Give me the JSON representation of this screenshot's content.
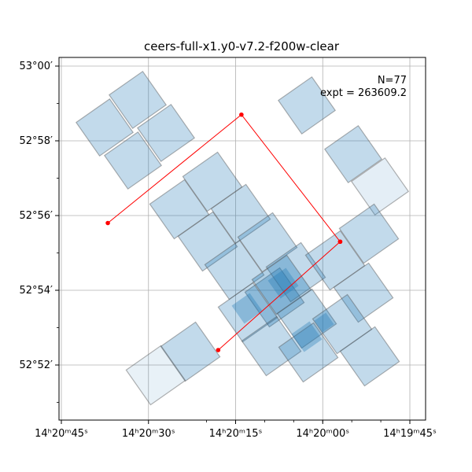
{
  "chart_data": {
    "type": "scatter",
    "title": "ceers-full-x1.y0-v7.2-f200w-clear",
    "xlabel": "",
    "ylabel": "",
    "x_axis": "RA (hms), decreasing to the right",
    "y_axis": "Dec (degrees, arcmin)",
    "xlim": [
      "14h20m49s",
      "14h19m43s"
    ],
    "ylim": [
      "52°50.5′",
      "53°00.3′"
    ],
    "x_ticks": [
      {
        "value": "14h20m45s",
        "label": "14ʰ20ᵐ45ˢ"
      },
      {
        "value": "14h20m30s",
        "label": "14ʰ20ᵐ30ˢ"
      },
      {
        "value": "14h20m15s",
        "label": "14ʰ20ᵐ15ˢ"
      },
      {
        "value": "14h20m00s",
        "label": "14ʰ20ᵐ00ˢ"
      },
      {
        "value": "14h19m45s",
        "label": "14ʰ19ᵐ45ˢ"
      }
    ],
    "y_ticks": [
      {
        "value": "53°00′",
        "label": "53°00′"
      },
      {
        "value": "52°58′",
        "label": "52°58′"
      },
      {
        "value": "52°56′",
        "label": "52°56′"
      },
      {
        "value": "52°54′",
        "label": "52°54′"
      },
      {
        "value": "52°52′",
        "label": "52°52′"
      }
    ],
    "grid": true,
    "annotation": {
      "n_label": "N=77",
      "expt_label": "expt = 263609.2"
    },
    "footprint_color": "#1f77b4",
    "footprint_edge_color": "#555555",
    "red_line_color": "#ff0000",
    "exposure_groups": [
      {
        "ra_center": "14h20m33s",
        "dec_center": "52°58.0′",
        "depth": "medium"
      },
      {
        "ra_center": "14h20m17s",
        "dec_center": "52°55.5′",
        "depth": "medium"
      },
      {
        "ra_center": "14h20m05s",
        "dec_center": "52°53.3′",
        "depth": "deep"
      },
      {
        "ra_center": "14h19m55s",
        "dec_center": "52°57.0′",
        "depth": "shallow"
      },
      {
        "ra_center": "14h20m27s",
        "dec_center": "52°51.8′",
        "depth": "shallow"
      }
    ],
    "red_path": {
      "segment_1": [
        {
          "ra": "14h20m37s",
          "dec": "52°55.8′"
        },
        {
          "ra": "14h20m14s",
          "dec": "52°58.7′"
        },
        {
          "ra": "14h19m57s",
          "dec": "52°55.3′"
        }
      ],
      "segment_2": [
        {
          "ra": "14h20m18s",
          "dec": "52°52.4′"
        },
        {
          "ra": "14h19m57s",
          "dec": "52°55.3′"
        }
      ]
    }
  }
}
